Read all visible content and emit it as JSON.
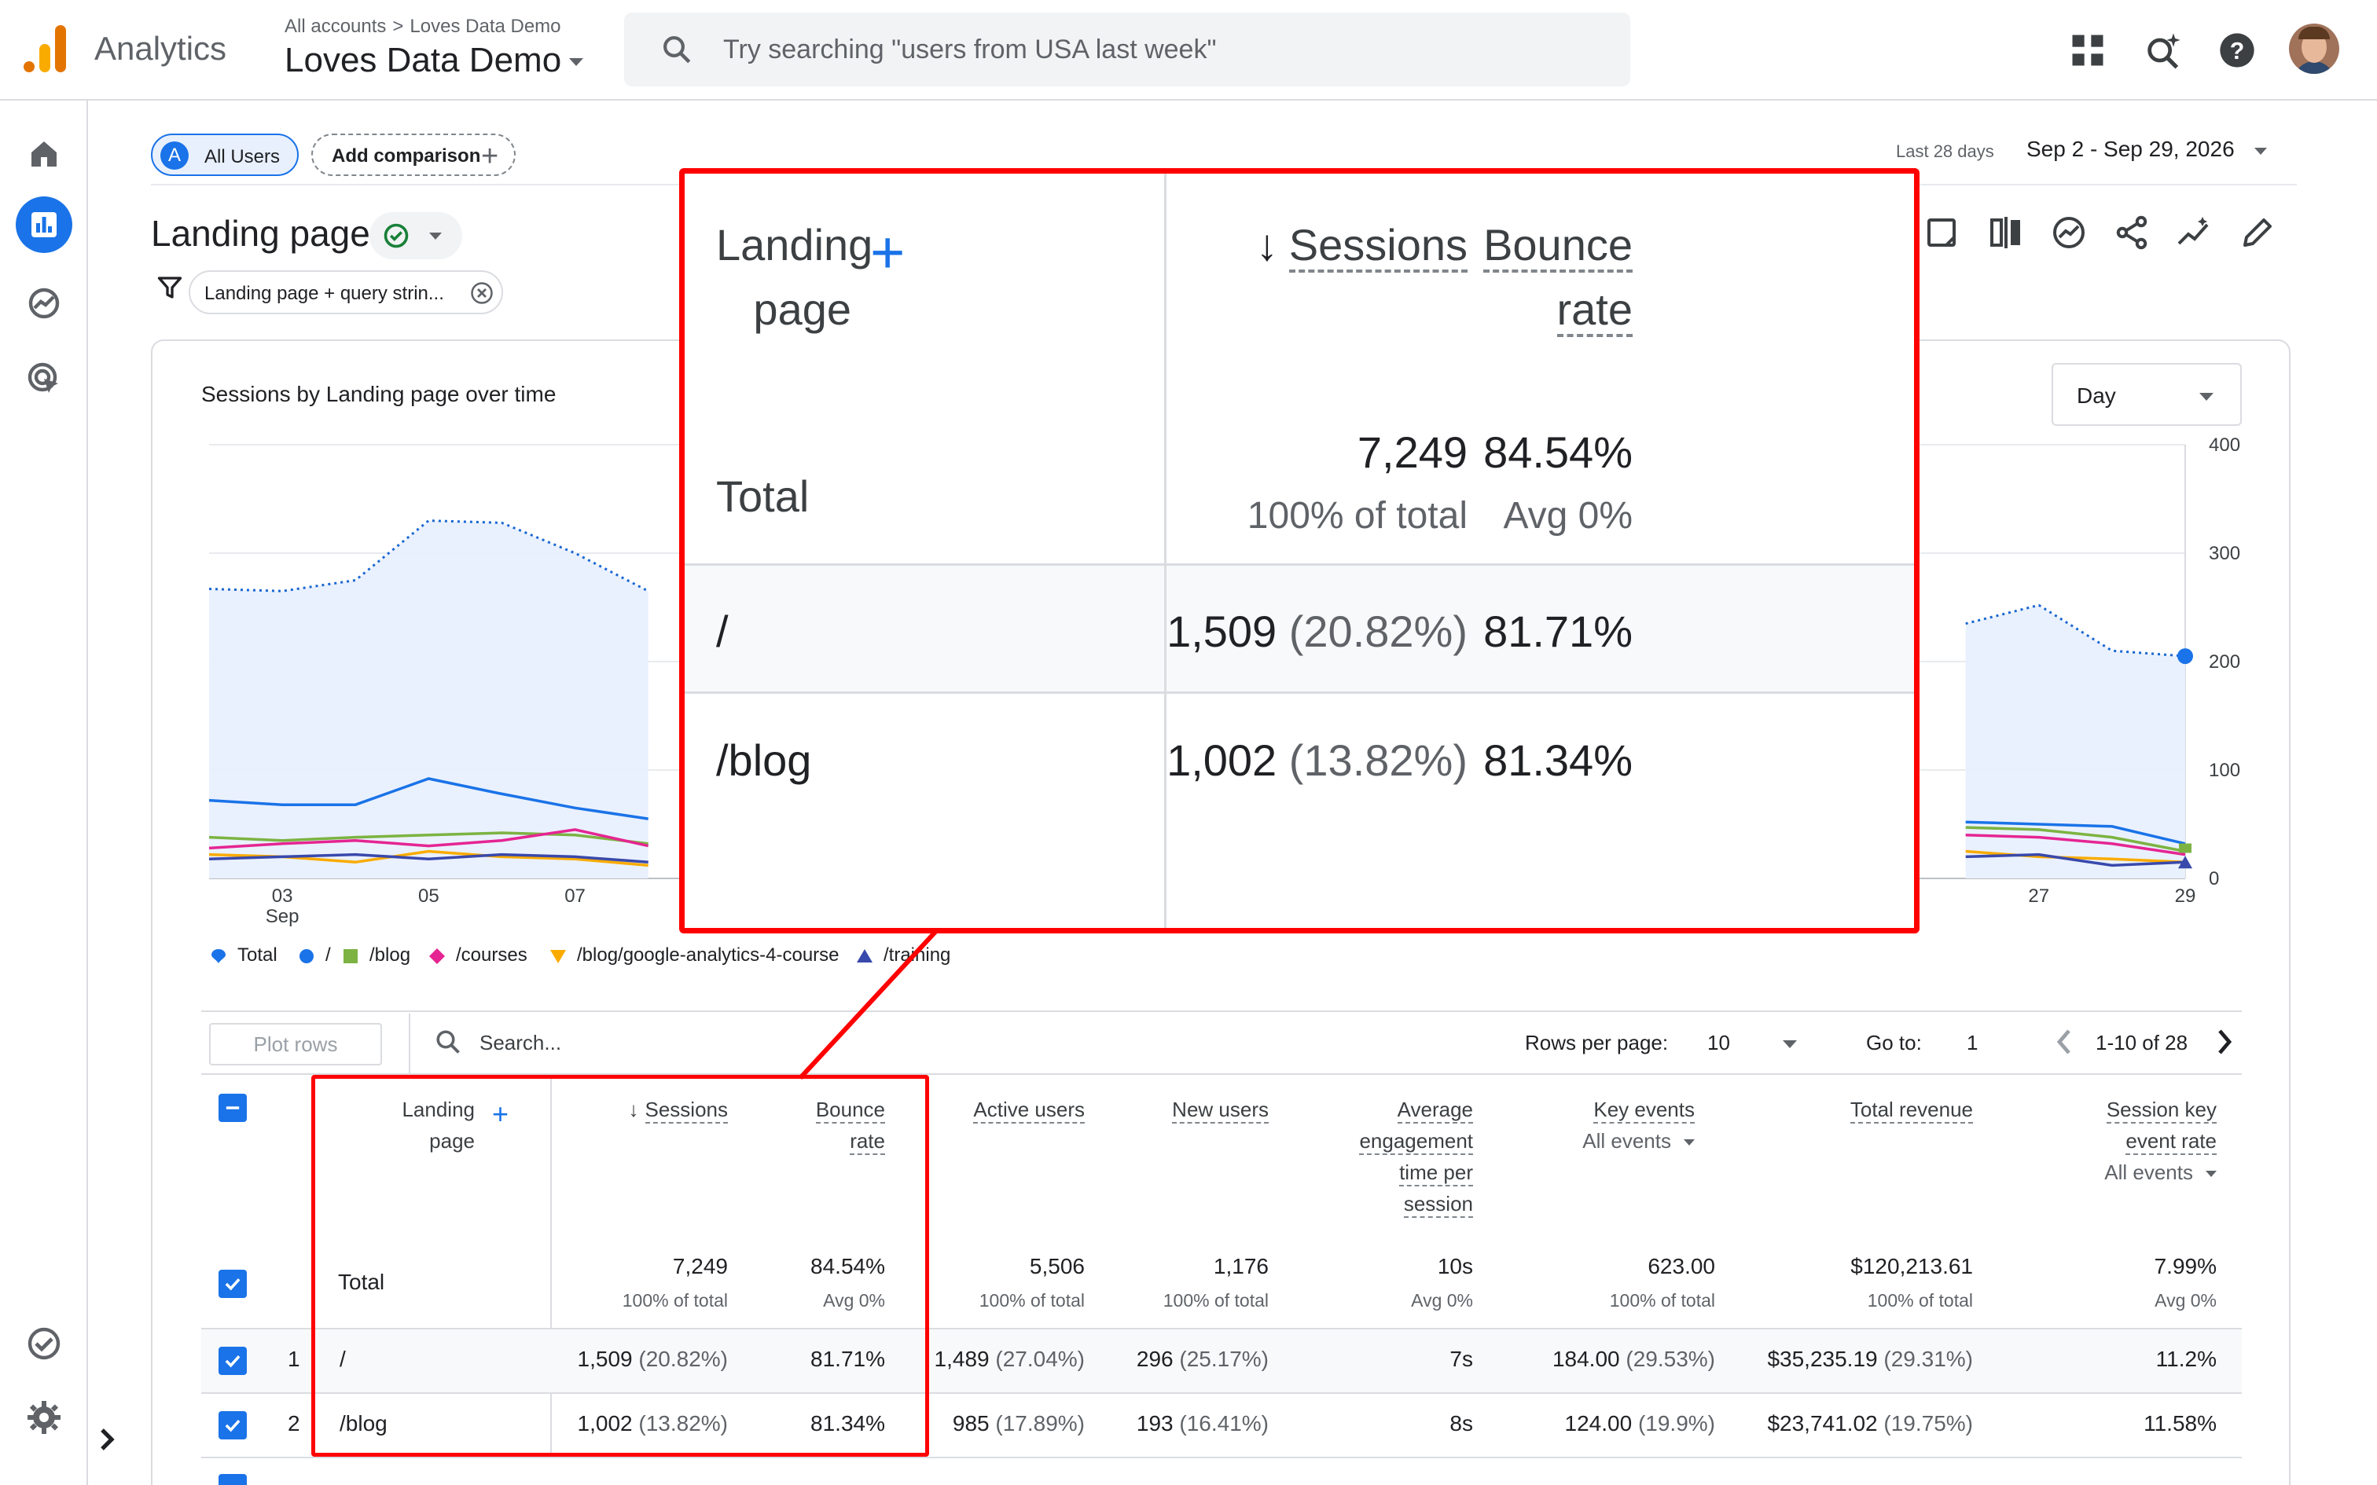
{
  "app": {
    "name": "Analytics",
    "breadcrumb": [
      "All accounts",
      "Loves Data Demo"
    ],
    "account": "Loves Data Demo",
    "search_placeholder": "Try searching \"users from USA last week\""
  },
  "icons": {
    "topbar": [
      "apps-grid-icon",
      "search-insights-icon",
      "help-icon"
    ],
    "leftnav": [
      "home-icon",
      "reports-icon",
      "explore-icon",
      "advertising-icon",
      "admin-tasks-icon",
      "settings-icon"
    ],
    "page_actions": [
      "customize-report-icon",
      "compare-icon",
      "insights-icon",
      "share-icon",
      "trend-icon",
      "edit-icon"
    ]
  },
  "header": {
    "segment_badge": "A",
    "segment": "All Users",
    "add_comparison": "Add comparison",
    "date_label": "Last 28 days",
    "date_range": "Sep 2 - Sep 29, 2026",
    "page_title": "Landing page",
    "filter": "Landing page + query strin..."
  },
  "chart": {
    "title": "Sessions by Landing page over time",
    "granularity": "Day",
    "legend": [
      {
        "name": "Total",
        "color": "#1a73e8"
      },
      {
        "name": "/",
        "color": "#1a73e8"
      },
      {
        "name": "/blog",
        "color": "#7cb342"
      },
      {
        "name": "/courses",
        "color": "#e52592"
      },
      {
        "name": "/blog/google-analytics-4-course",
        "color": "#f9ab00"
      },
      {
        "name": "/training",
        "color": "#3949ab"
      }
    ]
  },
  "chart_data": {
    "type": "line",
    "title": "Sessions by Landing page over time",
    "x_ticks": [
      "03\nSep",
      "05",
      "07",
      "27",
      "29"
    ],
    "x": [
      2,
      3,
      4,
      5,
      6,
      7,
      8,
      26,
      27,
      28,
      29
    ],
    "y_ticks": [
      0,
      100,
      200,
      300,
      400
    ],
    "ylim": [
      0,
      400
    ],
    "series": [
      {
        "name": "Total",
        "style": "dotted",
        "area": true,
        "values": [
          267,
          265,
          275,
          330,
          328,
          300,
          265,
          235,
          252,
          210,
          205
        ]
      },
      {
        "name": "/",
        "values": [
          72,
          68,
          68,
          92,
          78,
          65,
          55,
          52,
          50,
          48,
          32
        ]
      },
      {
        "name": "/blog",
        "values": [
          38,
          35,
          38,
          40,
          42,
          40,
          32,
          47,
          45,
          38,
          25
        ]
      },
      {
        "name": "/courses",
        "values": [
          28,
          32,
          35,
          30,
          35,
          45,
          30,
          40,
          38,
          32,
          22
        ]
      },
      {
        "name": "/blog/google-analytics-4-course",
        "values": [
          22,
          20,
          15,
          25,
          20,
          18,
          12,
          25,
          20,
          18,
          15
        ]
      },
      {
        "name": "/training",
        "values": [
          18,
          20,
          22,
          18,
          22,
          20,
          15,
          20,
          22,
          12,
          15
        ]
      }
    ]
  },
  "table_controls": {
    "plot_rows": "Plot rows",
    "search_placeholder": "Search...",
    "rows_per_page_label": "Rows per page:",
    "rows_per_page": "10",
    "goto_label": "Go to:",
    "goto_value": "1",
    "range": "1-10 of 28"
  },
  "table": {
    "columns": {
      "landing": [
        "Landing",
        "page"
      ],
      "sessions": "Sessions",
      "bounce": [
        "Bounce",
        "rate"
      ],
      "active": "Active users",
      "new": "New users",
      "engagement": [
        "Average",
        "engagement",
        "time per",
        "session"
      ],
      "key_events": "Key events",
      "key_events_sub": "All events",
      "revenue": "Total revenue",
      "session_key": [
        "Session key",
        "event rate"
      ],
      "session_key_sub": "All events"
    },
    "total": {
      "label": "Total",
      "sessions": "7,249",
      "sessions_sub": "100% of total",
      "bounce": "84.54%",
      "bounce_sub": "Avg 0%",
      "active": "5,506",
      "active_sub": "100% of total",
      "new": "1,176",
      "new_sub": "100% of total",
      "engagement": "10s",
      "engagement_sub": "Avg 0%",
      "key_events": "623.00",
      "key_events_sub": "100% of total",
      "revenue": "$120,213.61",
      "revenue_sub": "100% of total",
      "session_key": "7.99%",
      "session_key_sub": "Avg 0%"
    },
    "rows": [
      {
        "n": "1",
        "page": "/",
        "sessions": "1,509",
        "sessions_pct": "(20.82%)",
        "bounce": "81.71%",
        "active": "1,489",
        "active_pct": "(27.04%)",
        "new": "296",
        "new_pct": "(25.17%)",
        "engagement": "7s",
        "key_events": "184.00",
        "key_events_pct": "(29.53%)",
        "revenue": "$35,235.19",
        "revenue_pct": "(29.31%)",
        "session_key": "11.2%"
      },
      {
        "n": "2",
        "page": "/blog",
        "sessions": "1,002",
        "sessions_pct": "(13.82%)",
        "bounce": "81.34%",
        "active": "985",
        "active_pct": "(17.89%)",
        "new": "193",
        "new_pct": "(16.41%)",
        "engagement": "8s",
        "key_events": "124.00",
        "key_events_pct": "(19.9%)",
        "revenue": "$23,741.02",
        "revenue_pct": "(19.75%)",
        "session_key": "11.58%"
      }
    ]
  }
}
